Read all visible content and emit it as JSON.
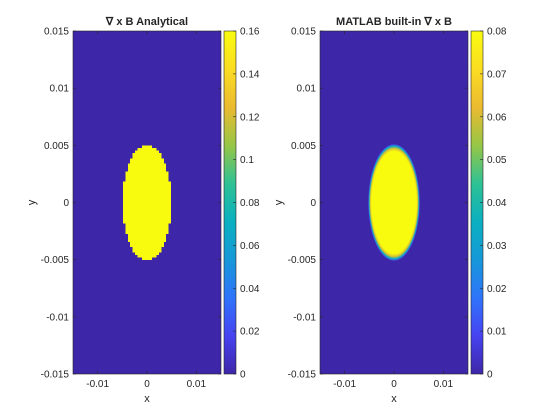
{
  "chart_data": [
    {
      "type": "heatmap",
      "title": "∇ x B Analytical",
      "xlabel": "x",
      "ylabel": "y",
      "xlim": [
        -0.015,
        0.015
      ],
      "ylim": [
        -0.015,
        0.015
      ],
      "x_ticks": [
        -0.01,
        0,
        0.01
      ],
      "x_tick_labels": [
        "-0.01",
        "0",
        "0.01"
      ],
      "y_ticks": [
        0.015,
        0.01,
        0.005,
        0,
        -0.005,
        -0.01,
        -0.015
      ],
      "y_tick_labels": [
        "0.015",
        "0.01",
        "0.005",
        "0",
        "-0.005",
        "-0.01",
        "-0.015"
      ],
      "colorbar": {
        "min": 0,
        "max": 0.16,
        "ticks": [
          0.16,
          0.14,
          0.12,
          0.1,
          0.08,
          0.06,
          0.04,
          0.02,
          0
        ],
        "tick_labels": [
          "0.16",
          "0.14",
          "0.12",
          "0.1",
          "0.08",
          "0.06",
          "0.04",
          "0.02",
          "0"
        ]
      },
      "background_value": 0,
      "region": {
        "shape": "ellipse",
        "center": [
          0,
          0
        ],
        "semi_axis_x": 0.005,
        "semi_axis_y": 0.005,
        "value": 0.16,
        "edge": "sharp"
      },
      "grid": false
    },
    {
      "type": "heatmap",
      "title": "MATLAB built-in ∇ x B",
      "xlabel": "x",
      "ylabel": "y",
      "xlim": [
        -0.015,
        0.015
      ],
      "ylim": [
        -0.015,
        0.015
      ],
      "x_ticks": [
        -0.01,
        0,
        0.01
      ],
      "x_tick_labels": [
        "-0.01",
        "0",
        "0.01"
      ],
      "y_ticks": [
        0.015,
        0.01,
        0.005,
        0,
        -0.005,
        -0.01,
        -0.015
      ],
      "y_tick_labels": [
        "0.015",
        "0.01",
        "0.005",
        "0",
        "-0.005",
        "-0.01",
        "-0.015"
      ],
      "colorbar": {
        "min": 0,
        "max": 0.08,
        "ticks": [
          0.08,
          0.07,
          0.06,
          0.05,
          0.04,
          0.03,
          0.02,
          0.01,
          0
        ],
        "tick_labels": [
          "0.08",
          "0.07",
          "0.06",
          "0.05",
          "0.04",
          "0.03",
          "0.02",
          "0.01",
          "0"
        ]
      },
      "background_value": 0,
      "region": {
        "shape": "ellipse",
        "center": [
          0,
          0
        ],
        "semi_axis_x": 0.005,
        "semi_axis_y": 0.005,
        "value": 0.08,
        "edge": "smooth"
      },
      "grid": false
    }
  ],
  "colormap": "parula",
  "colormap_stops": [
    "#3e26a8",
    "#4743f0",
    "#2f74fb",
    "#1798d9",
    "#0bb0c0",
    "#2ec194",
    "#97c646",
    "#ebba30",
    "#fbdd22",
    "#f9fb0e"
  ]
}
